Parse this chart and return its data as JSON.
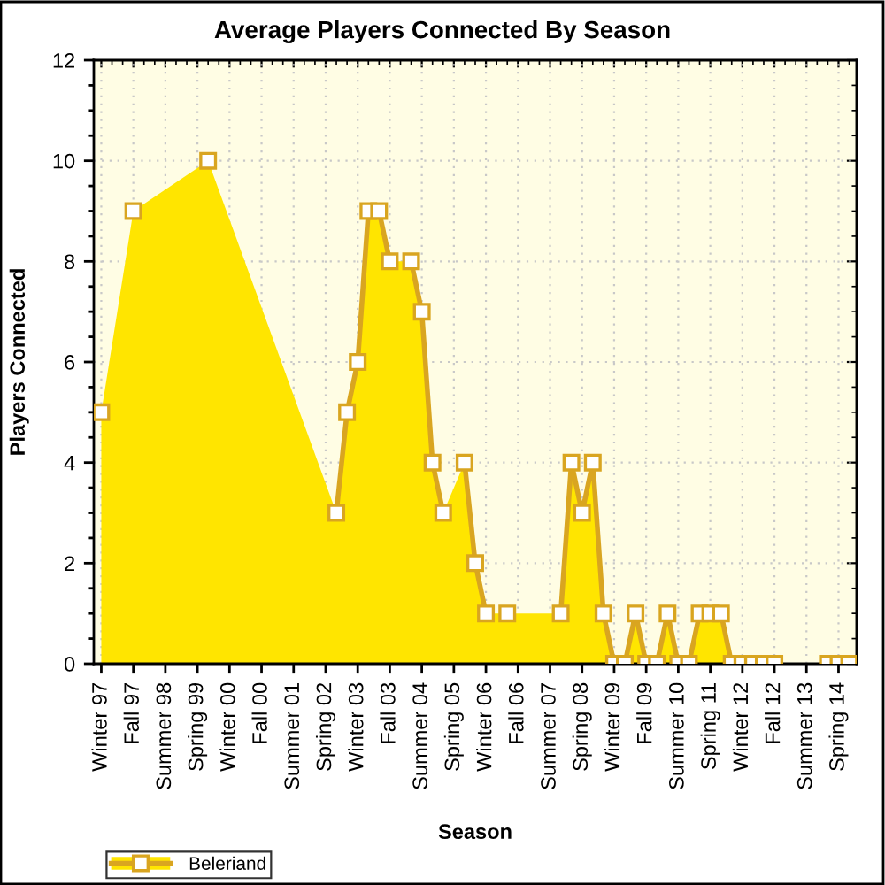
{
  "chart_data": {
    "type": "area",
    "title": "Average Players Connected By Season",
    "xlabel": "Season",
    "ylabel": "Players Connected",
    "categories": [
      "Winter 97",
      null,
      null,
      "Fall 97",
      null,
      null,
      "Summer 98",
      null,
      null,
      "Spring 99",
      null,
      null,
      "Winter 00",
      null,
      null,
      "Fall 00",
      null,
      null,
      "Summer 01",
      null,
      null,
      "Spring 02",
      null,
      null,
      "Winter 03",
      null,
      null,
      "Fall 03",
      null,
      null,
      "Summer 04",
      null,
      null,
      "Spring 05",
      null,
      null,
      "Winter 06",
      null,
      null,
      "Fall 06",
      null,
      null,
      "Summer 07",
      null,
      null,
      "Spring 08",
      null,
      null,
      "Winter 09",
      null,
      null,
      "Fall 09",
      null,
      null,
      "Summer 10",
      null,
      null,
      "Spring 11",
      null,
      null,
      "Winter 12",
      null,
      null,
      "Fall 12",
      null,
      null,
      "Summer 13",
      null,
      null,
      "Spring 14",
      null
    ],
    "series": [
      {
        "name": "Beleriand",
        "color": "#ffe500",
        "values": [
          5,
          null,
          null,
          9,
          null,
          null,
          null,
          null,
          null,
          null,
          10,
          null,
          null,
          null,
          null,
          null,
          null,
          null,
          null,
          null,
          null,
          null,
          3,
          5,
          6,
          9,
          9,
          8,
          null,
          8,
          7,
          4,
          3,
          null,
          4,
          2,
          1,
          null,
          1,
          null,
          null,
          null,
          null,
          1,
          4,
          3,
          4,
          1,
          0,
          0,
          1,
          0,
          0,
          1,
          0,
          0,
          1,
          1,
          1,
          0,
          0,
          0,
          0,
          0,
          null,
          null,
          null,
          null,
          0,
          0,
          0
        ]
      }
    ],
    "ylim": [
      0,
      12
    ],
    "yticks": [
      0,
      {
        "value": 0.5,
        "label": null
      },
      {
        "value": 1,
        "label": null
      },
      {
        "value": 1.5,
        "label": null
      },
      2,
      {
        "value": 2.5,
        "label": null
      },
      {
        "value": 3,
        "label": null
      },
      {
        "value": 3.5,
        "label": null
      },
      4,
      {
        "value": 4.5,
        "label": null
      },
      {
        "value": 5,
        "label": null
      },
      {
        "value": 5.5,
        "label": null
      },
      6,
      {
        "value": 6.5,
        "label": null
      },
      {
        "value": 7,
        "label": null
      },
      {
        "value": 7.5,
        "label": null
      },
      8,
      {
        "value": 8.5,
        "label": null
      },
      {
        "value": 9,
        "label": null
      },
      {
        "value": 9.5,
        "label": null
      },
      10,
      {
        "value": 10.5,
        "label": null
      },
      {
        "value": 11,
        "label": null
      },
      {
        "value": 11.5,
        "label": null
      },
      12
    ],
    "grid": true,
    "legend": "bottom left",
    "marker": "square"
  }
}
